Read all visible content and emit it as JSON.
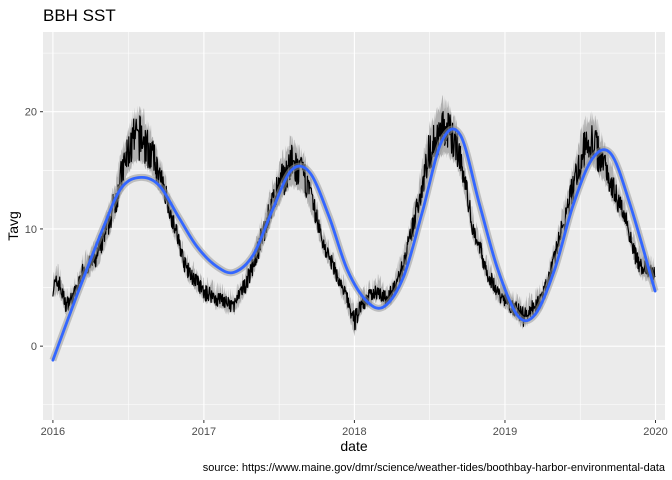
{
  "chart_data": {
    "type": "line",
    "title": "BBH SST",
    "xlabel": "date",
    "ylabel": "Tavg",
    "caption": "source: https://www.maine.gov/dmr/science/weather-tides/boothbay-harbor-environmental-data",
    "xlim": [
      "2015-12-08",
      "2020-01-24"
    ],
    "ylim": [
      -6.3,
      26.8
    ],
    "x_ticks": [
      "2016",
      "2017",
      "2018",
      "2019",
      "2020"
    ],
    "y_ticks": [
      "0",
      "10",
      "20"
    ],
    "grid": true,
    "legend": "none",
    "colors": {
      "panel_background": "#ebebeb",
      "grid": "#ffffff",
      "daily_line": "#000000",
      "daily_range": "#a6a6a6",
      "smooth_line": "#3366ff",
      "smooth_band": "#999999"
    },
    "series": [
      {
        "kind": "daily",
        "x": [
          "2016-01-01",
          "2016-01-15",
          "2016-02-01",
          "2016-02-15",
          "2016-03-01",
          "2016-03-15",
          "2016-04-01",
          "2016-04-15",
          "2016-05-01",
          "2016-05-15",
          "2016-06-01",
          "2016-06-15",
          "2016-07-01",
          "2016-07-15",
          "2016-08-01",
          "2016-08-15",
          "2016-09-01",
          "2016-09-15",
          "2016-10-01",
          "2016-10-15",
          "2016-11-01",
          "2016-11-15",
          "2016-12-01",
          "2016-12-15",
          "2017-01-01",
          "2017-01-15",
          "2017-02-01",
          "2017-02-15",
          "2017-03-01",
          "2017-03-15",
          "2017-04-01",
          "2017-04-15",
          "2017-05-01",
          "2017-05-15",
          "2017-06-01",
          "2017-06-15",
          "2017-07-01",
          "2017-07-15",
          "2017-08-01",
          "2017-08-15",
          "2017-09-01",
          "2017-09-15",
          "2017-10-01",
          "2017-10-15",
          "2017-11-01",
          "2017-11-15",
          "2017-12-01",
          "2017-12-15",
          "2018-01-01",
          "2018-01-15",
          "2018-02-01",
          "2018-02-15",
          "2018-03-01",
          "2018-03-15",
          "2018-04-01",
          "2018-04-15",
          "2018-05-01",
          "2018-05-15",
          "2018-06-01",
          "2018-06-15",
          "2018-07-01",
          "2018-07-15",
          "2018-08-01",
          "2018-08-15",
          "2018-09-01",
          "2018-09-15",
          "2018-10-01",
          "2018-10-15",
          "2018-11-01",
          "2018-11-15",
          "2018-12-01",
          "2018-12-15",
          "2019-01-01",
          "2019-01-15",
          "2019-02-01",
          "2019-02-15",
          "2019-03-01",
          "2019-03-15",
          "2019-04-01",
          "2019-04-15",
          "2019-05-01",
          "2019-05-15",
          "2019-06-01",
          "2019-06-15",
          "2019-07-01",
          "2019-07-15",
          "2019-08-01",
          "2019-08-15",
          "2019-09-01",
          "2019-09-15",
          "2019-10-01",
          "2019-10-15",
          "2019-11-01",
          "2019-11-15",
          "2019-12-01",
          "2019-12-15",
          "2019-12-31"
        ],
        "y": [
          5.0,
          5.5,
          3.5,
          4.0,
          5.0,
          6.5,
          7.0,
          7.5,
          9.0,
          10.5,
          12.5,
          14.5,
          16.5,
          17.5,
          17.8,
          17.0,
          16.0,
          14.5,
          13.0,
          11.0,
          9.0,
          7.0,
          6.0,
          5.5,
          4.5,
          4.5,
          4.0,
          4.0,
          3.5,
          3.5,
          4.5,
          5.5,
          7.0,
          8.5,
          10.5,
          12.0,
          13.5,
          14.5,
          15.5,
          15.0,
          14.5,
          13.0,
          11.0,
          9.0,
          7.5,
          6.5,
          5.0,
          4.0,
          2.0,
          3.5,
          4.0,
          4.5,
          4.8,
          4.0,
          4.5,
          5.5,
          7.0,
          9.0,
          11.5,
          14.0,
          16.5,
          17.5,
          18.5,
          18.3,
          17.5,
          16.0,
          13.0,
          10.0,
          8.5,
          6.5,
          5.5,
          4.5,
          4.0,
          3.5,
          3.0,
          2.5,
          3.0,
          3.5,
          4.0,
          5.5,
          7.5,
          9.5,
          11.5,
          13.5,
          15.5,
          17.0,
          17.5,
          16.5,
          15.5,
          14.0,
          12.5,
          11.5,
          9.5,
          7.5,
          6.5,
          6.5,
          6.0
        ],
        "y_min": [
          4.2,
          4.6,
          2.8,
          3.3,
          4.3,
          5.7,
          6.2,
          6.6,
          8.0,
          9.3,
          11.2,
          13.0,
          14.9,
          15.6,
          15.8,
          15.2,
          14.5,
          13.3,
          12.0,
          10.1,
          8.2,
          6.3,
          5.3,
          4.8,
          3.8,
          3.8,
          3.3,
          3.3,
          2.8,
          2.9,
          3.8,
          4.7,
          6.2,
          7.5,
          9.3,
          10.7,
          12.1,
          12.9,
          13.7,
          13.4,
          13.1,
          11.8,
          10.0,
          8.2,
          6.8,
          5.8,
          4.3,
          3.2,
          1.0,
          2.7,
          3.3,
          3.8,
          4.1,
          3.3,
          3.8,
          4.7,
          6.1,
          8.0,
          10.2,
          12.5,
          14.7,
          15.6,
          16.4,
          16.3,
          15.8,
          14.6,
          11.9,
          9.1,
          7.7,
          5.8,
          4.8,
          3.8,
          3.3,
          2.8,
          2.2,
          1.6,
          2.2,
          2.8,
          3.3,
          4.7,
          6.6,
          8.4,
          10.3,
          12.1,
          13.8,
          15.1,
          15.6,
          14.7,
          14.0,
          12.7,
          11.4,
          10.5,
          8.6,
          6.7,
          5.7,
          5.7,
          5.2
        ],
        "y_max": [
          5.9,
          6.5,
          4.2,
          4.8,
          5.7,
          7.4,
          7.9,
          8.6,
          10.1,
          11.8,
          14.1,
          16.3,
          18.4,
          19.8,
          20.2,
          19.1,
          17.7,
          15.8,
          14.1,
          12.0,
          9.9,
          7.8,
          6.8,
          6.3,
          5.3,
          5.3,
          4.8,
          4.8,
          4.3,
          4.2,
          5.3,
          6.4,
          8.0,
          9.6,
          11.9,
          13.5,
          15.2,
          16.4,
          17.6,
          16.9,
          16.1,
          14.3,
          12.1,
          9.9,
          8.3,
          7.3,
          5.8,
          4.9,
          3.2,
          4.4,
          4.8,
          5.3,
          5.6,
          4.8,
          5.3,
          6.4,
          8.0,
          10.1,
          12.9,
          15.7,
          18.6,
          19.6,
          20.8,
          20.5,
          19.3,
          17.5,
          14.2,
          11.0,
          9.4,
          7.3,
          6.3,
          5.3,
          4.8,
          4.3,
          3.9,
          3.5,
          3.9,
          4.3,
          4.8,
          6.4,
          8.5,
          10.7,
          12.9,
          15.1,
          17.5,
          19.2,
          19.6,
          18.5,
          17.1,
          15.4,
          13.7,
          12.6,
          10.5,
          8.4,
          7.4,
          7.4,
          6.9
        ]
      },
      {
        "kind": "smooth",
        "x": [
          "2016-01-01",
          "2016-03-01",
          "2016-05-01",
          "2016-06-15",
          "2016-08-01",
          "2016-09-15",
          "2016-11-01",
          "2016-12-15",
          "2017-02-01",
          "2017-03-15",
          "2017-05-01",
          "2017-06-15",
          "2017-08-01",
          "2017-09-15",
          "2017-11-01",
          "2017-12-15",
          "2018-02-01",
          "2018-03-15",
          "2018-05-01",
          "2018-06-15",
          "2018-08-01",
          "2018-09-15",
          "2018-11-01",
          "2018-12-15",
          "2019-02-01",
          "2019-03-15",
          "2019-05-01",
          "2019-06-15",
          "2019-08-01",
          "2019-09-15",
          "2019-11-01",
          "2019-12-31"
        ],
        "y": [
          -1.2,
          4.5,
          10.0,
          13.5,
          14.4,
          13.7,
          11.0,
          8.5,
          6.8,
          6.3,
          7.8,
          11.5,
          15.0,
          14.8,
          11.0,
          6.5,
          3.8,
          3.4,
          6.0,
          11.5,
          17.5,
          18.0,
          12.0,
          6.5,
          2.6,
          2.7,
          6.5,
          12.0,
          16.0,
          16.4,
          12.0,
          4.7
        ],
        "band": 0.35
      }
    ]
  }
}
